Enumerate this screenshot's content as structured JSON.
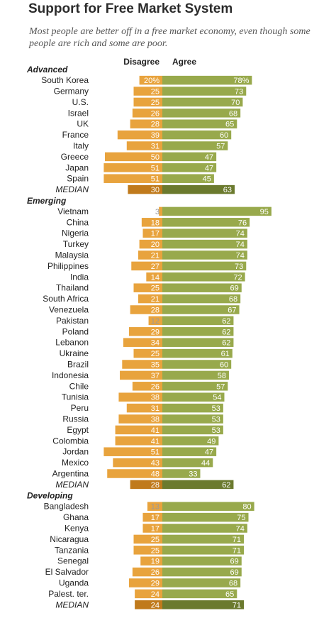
{
  "title": "Support for Free Market System",
  "subtitle": "Most people are better off in a free market economy, even though some people are rich and some are poor.",
  "colors": {
    "disagree": "#e8a33d",
    "agree": "#98a94c",
    "disagree_median": "#c07a1c",
    "agree_median": "#6b7a2e",
    "label_on_bar": "#ffffff",
    "label_off_bar": "#9a9a9a",
    "text": "#222222"
  },
  "chart_data": {
    "type": "bar",
    "layout": "diverging-horizontal",
    "series_names": [
      "Disagree",
      "Agree"
    ],
    "groups": [
      {
        "name": "Advanced",
        "rows": [
          {
            "label": "South Korea",
            "disagree": 20,
            "agree": 78,
            "disagree_text": "20%",
            "agree_text": "78%"
          },
          {
            "label": "Germany",
            "disagree": 25,
            "agree": 73
          },
          {
            "label": "U.S.",
            "disagree": 25,
            "agree": 70
          },
          {
            "label": "Israel",
            "disagree": 26,
            "agree": 68
          },
          {
            "label": "UK",
            "disagree": 28,
            "agree": 65
          },
          {
            "label": "France",
            "disagree": 39,
            "agree": 60
          },
          {
            "label": "Italy",
            "disagree": 31,
            "agree": 57
          },
          {
            "label": "Greece",
            "disagree": 50,
            "agree": 47
          },
          {
            "label": "Japan",
            "disagree": 51,
            "agree": 47
          },
          {
            "label": "Spain",
            "disagree": 51,
            "agree": 45
          },
          {
            "label": "MEDIAN",
            "disagree": 30,
            "agree": 63,
            "median": true
          }
        ]
      },
      {
        "name": "Emerging",
        "rows": [
          {
            "label": "Vietnam",
            "disagree": 3,
            "agree": 95
          },
          {
            "label": "China",
            "disagree": 18,
            "agree": 76
          },
          {
            "label": "Nigeria",
            "disagree": 17,
            "agree": 74
          },
          {
            "label": "Turkey",
            "disagree": 20,
            "agree": 74
          },
          {
            "label": "Malaysia",
            "disagree": 21,
            "agree": 74
          },
          {
            "label": "Philippines",
            "disagree": 27,
            "agree": 73
          },
          {
            "label": "India",
            "disagree": 14,
            "agree": 72
          },
          {
            "label": "Thailand",
            "disagree": 25,
            "agree": 69
          },
          {
            "label": "South Africa",
            "disagree": 21,
            "agree": 68
          },
          {
            "label": "Venezuela",
            "disagree": 28,
            "agree": 67
          },
          {
            "label": "Pakistan",
            "disagree": 12,
            "agree": 62
          },
          {
            "label": "Poland",
            "disagree": 29,
            "agree": 62
          },
          {
            "label": "Lebanon",
            "disagree": 34,
            "agree": 62
          },
          {
            "label": "Ukraine",
            "disagree": 25,
            "agree": 61
          },
          {
            "label": "Brazil",
            "disagree": 35,
            "agree": 60
          },
          {
            "label": "Indonesia",
            "disagree": 37,
            "agree": 58
          },
          {
            "label": "Chile",
            "disagree": 26,
            "agree": 57
          },
          {
            "label": "Tunisia",
            "disagree": 38,
            "agree": 54
          },
          {
            "label": "Peru",
            "disagree": 31,
            "agree": 53
          },
          {
            "label": "Russia",
            "disagree": 38,
            "agree": 53
          },
          {
            "label": "Egypt",
            "disagree": 41,
            "agree": 53
          },
          {
            "label": "Colombia",
            "disagree": 41,
            "agree": 49
          },
          {
            "label": "Jordan",
            "disagree": 51,
            "agree": 47
          },
          {
            "label": "Mexico",
            "disagree": 43,
            "agree": 44
          },
          {
            "label": "Argentina",
            "disagree": 48,
            "agree": 33
          },
          {
            "label": "MEDIAN",
            "disagree": 28,
            "agree": 62,
            "median": true
          }
        ]
      },
      {
        "name": "Developing",
        "rows": [
          {
            "label": "Bangladesh",
            "disagree": 13,
            "agree": 80
          },
          {
            "label": "Ghana",
            "disagree": 17,
            "agree": 75
          },
          {
            "label": "Kenya",
            "disagree": 17,
            "agree": 74
          },
          {
            "label": "Nicaragua",
            "disagree": 25,
            "agree": 71
          },
          {
            "label": "Tanzania",
            "disagree": 25,
            "agree": 71
          },
          {
            "label": "Senegal",
            "disagree": 19,
            "agree": 69
          },
          {
            "label": "El Salvador",
            "disagree": 26,
            "agree": 69
          },
          {
            "label": "Uganda",
            "disagree": 29,
            "agree": 68
          },
          {
            "label": "Palest. ter.",
            "disagree": 24,
            "agree": 65
          },
          {
            "label": "MEDIAN",
            "disagree": 24,
            "agree": 71,
            "median": true
          }
        ]
      }
    ]
  }
}
